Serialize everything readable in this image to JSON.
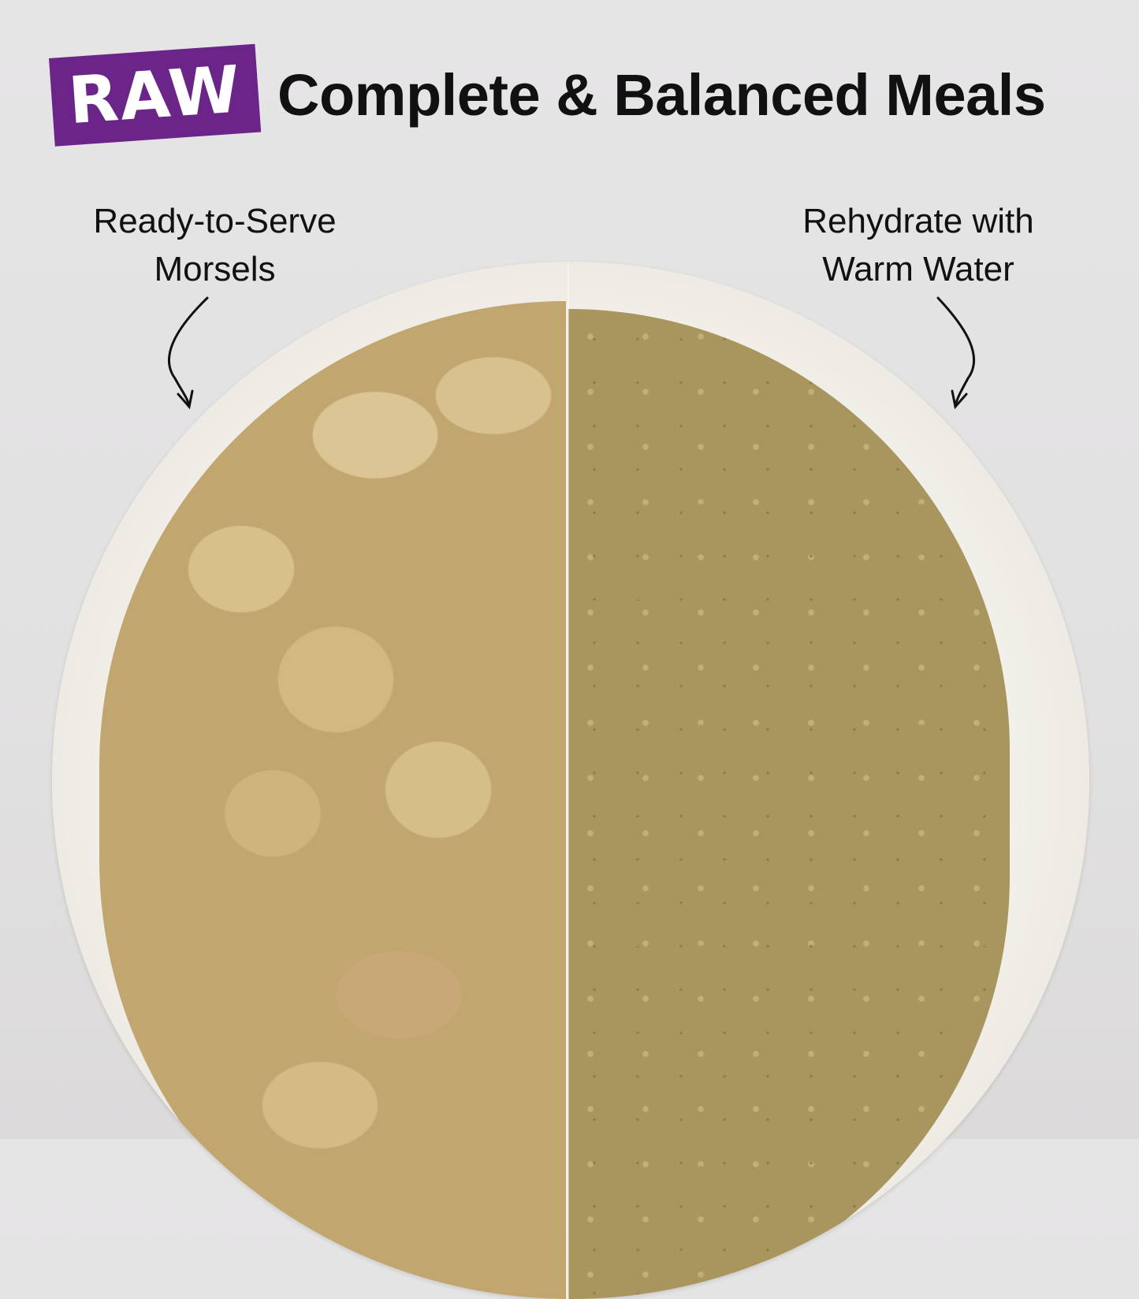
{
  "badge": {
    "label": "RAW",
    "color": "#6b2488"
  },
  "title": "Complete & Balanced Meals",
  "labels": {
    "left": {
      "line1": "Ready-to-Serve",
      "line2": "Morsels"
    },
    "right": {
      "line1": "Rehydrate with",
      "line2": "Warm Water"
    }
  },
  "image": {
    "subject": "bowl of freeze-dried morsels vs rehydrated food"
  }
}
